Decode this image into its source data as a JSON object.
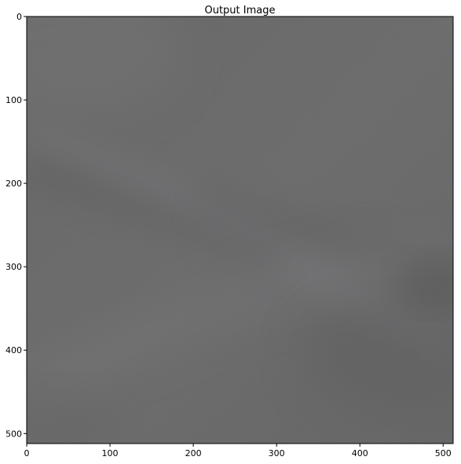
{
  "figure": {
    "title": "Output Image",
    "x_ticks": [
      "0",
      "100",
      "200",
      "300",
      "400",
      "500"
    ],
    "y_ticks": [
      "0",
      "100",
      "200",
      "300",
      "400",
      "500"
    ],
    "image_description_colors": {
      "base": "#6e6e6f",
      "light_streak": "#7b7a7d",
      "dark_streak": "#5f5f61"
    }
  }
}
